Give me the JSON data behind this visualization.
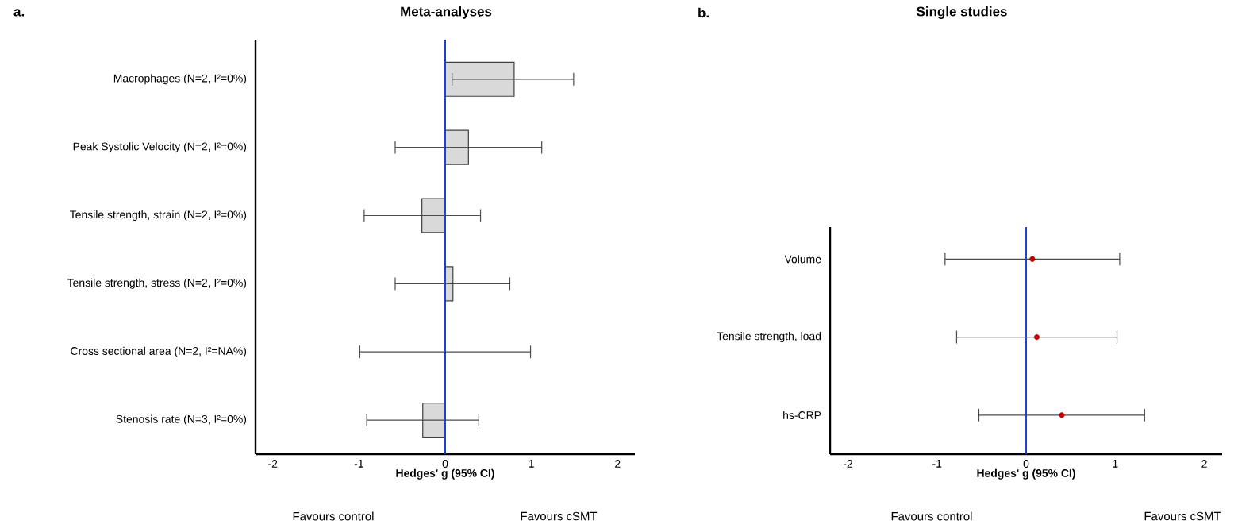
{
  "chart_data": [
    {
      "type": "bar",
      "orientation": "horizontal",
      "title": "Meta-analyses",
      "xlabel": "Hedges' g (95% CI)",
      "categories": [
        "Macrophages (N=2, I²=0%)",
        "Peak Systolic Velocity (N=2, I²=0%)",
        "Tensile strength, strain (N=2, I²=0%)",
        "Tensile strength, stress (N=2, I²=0%)",
        "Cross sectional area (N=2, I²=NA%)",
        "Stenosis rate (N=3, I²=0%)"
      ],
      "values": [
        0.8,
        0.27,
        -0.27,
        0.09,
        0,
        -0.26
      ],
      "errors": [
        [
          0.08,
          1.49
        ],
        [
          -0.58,
          1.12
        ],
        [
          -0.94,
          0.41
        ],
        [
          -0.58,
          0.75
        ],
        [
          -0.99,
          0.99
        ],
        [
          -0.91,
          0.39
        ]
      ],
      "color": "#d9d9d9",
      "xlim": [
        -2.2,
        2.2
      ],
      "xticks": [
        -2,
        -1,
        0,
        1,
        2
      ],
      "ref_lines": [
        {
          "axis": "x",
          "value": 0,
          "color": "#1f3fdb"
        }
      ],
      "annotations": [
        "a.",
        "Favours control",
        "Favours cSMT"
      ]
    },
    {
      "type": "scatter",
      "orientation": "horizontal",
      "title": "Single studies",
      "xlabel": "Hedges' g (95% CI)",
      "categories": [
        "Volume",
        "Tensile strength, load",
        "hs-CRP"
      ],
      "values": [
        0.07,
        0.12,
        0.4
      ],
      "errors": [
        [
          -0.91,
          1.05
        ],
        [
          -0.78,
          1.02
        ],
        [
          -0.53,
          1.33
        ]
      ],
      "color": "#c00000",
      "marker": "circle",
      "xlim": [
        -2.2,
        2.2
      ],
      "xticks": [
        -2,
        -1,
        0,
        1,
        2
      ],
      "ref_lines": [
        {
          "axis": "x",
          "value": 0,
          "color": "#1f3fdb"
        }
      ],
      "annotations": [
        "b.",
        "Favours control",
        "Favours cSMT"
      ]
    }
  ]
}
